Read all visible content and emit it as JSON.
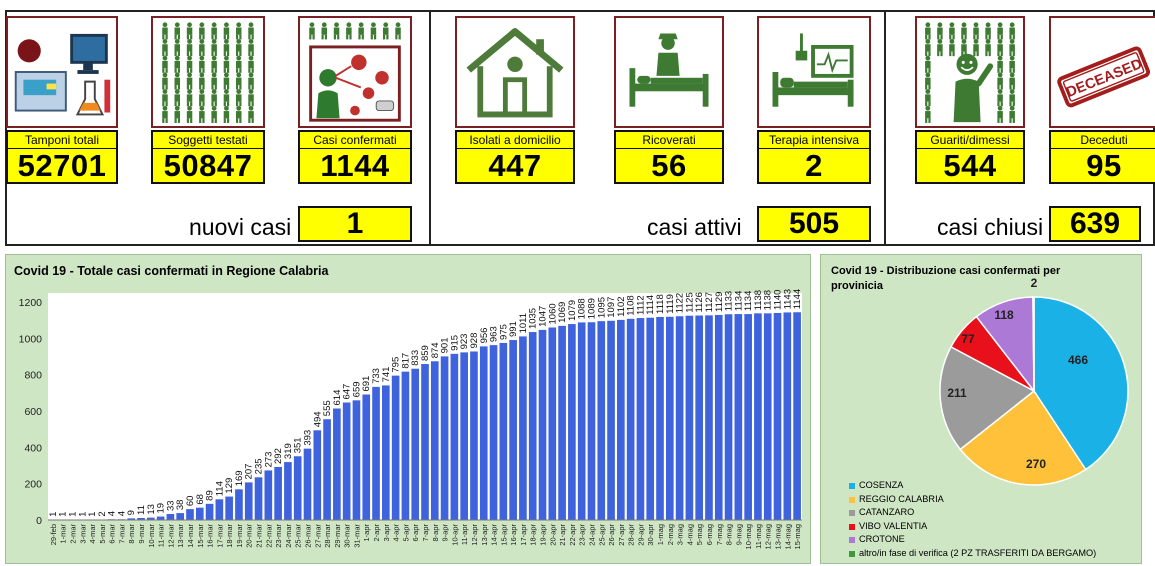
{
  "cards": [
    {
      "id": "tamponi",
      "label": "Tamponi totali",
      "value": "52701",
      "icon": "lab-testing-icon"
    },
    {
      "id": "soggetti",
      "label": "Soggetti testati",
      "value": "50847",
      "icon": "people-crowd-icon"
    },
    {
      "id": "confermati",
      "label": "Casi confermati",
      "value": "1144",
      "icon": "virus-infection-icon"
    },
    {
      "id": "isolati",
      "label": "Isolati a domicilio",
      "value": "447",
      "icon": "house-icon"
    },
    {
      "id": "ricoverati",
      "label": "Ricoverati",
      "value": "56",
      "icon": "hospital-bed-icon"
    },
    {
      "id": "terapia",
      "label": "Terapia intensiva",
      "value": "2",
      "icon": "icu-bed-icon"
    },
    {
      "id": "guariti",
      "label": "Guariti/dimessi",
      "value": "544",
      "icon": "recovered-person-icon"
    },
    {
      "id": "deceduti",
      "label": "Deceduti",
      "value": "95",
      "icon": "deceased-stamp-icon"
    }
  ],
  "stamp_text": "DECEASED",
  "summary": {
    "nuovi_label": "nuovi casi",
    "nuovi_value": "1",
    "attivi_label": "casi attivi",
    "attivi_value": "505",
    "chiusi_label": "casi chiusi",
    "chiusi_value": "639"
  },
  "colors": {
    "highlight": "#ffff00",
    "bar": "#3f63dd",
    "panel_bg": "#cfe6c5",
    "icon_green": "#3f7a33"
  },
  "chart_data": [
    {
      "type": "bar",
      "title": "Covid 19 - Totale casi confermati in Regione Calabria",
      "xlabel": "",
      "ylabel": "",
      "ylim": [
        0,
        1250
      ],
      "yticks": [
        0,
        200,
        400,
        600,
        800,
        1000,
        1200
      ],
      "grid": false,
      "categories": [
        "29-feb",
        "1-mar",
        "2-mar",
        "3-mar",
        "4-mar",
        "5-mar",
        "6-mar",
        "7-mar",
        "8-mar",
        "9-mar",
        "10-mar",
        "11-mar",
        "12-mar",
        "13-mar",
        "14-mar",
        "15-mar",
        "16-mar",
        "17-mar",
        "18-mar",
        "19-mar",
        "20-mar",
        "21-mar",
        "22-mar",
        "23-mar",
        "24-mar",
        "25-mar",
        "26-mar",
        "27-mar",
        "28-mar",
        "29-mar",
        "30-mar",
        "31-mar",
        "1-apr",
        "2-apr",
        "3-apr",
        "4-apr",
        "5-apr",
        "6-apr",
        "7-apr",
        "8-apr",
        "9-apr",
        "10-apr",
        "11-apr",
        "12-apr",
        "13-apr",
        "14-apr",
        "15-apr",
        "16-apr",
        "17-apr",
        "18-apr",
        "19-apr",
        "20-apr",
        "21-apr",
        "22-apr",
        "23-apr",
        "24-apr",
        "25-apr",
        "26-apr",
        "27-apr",
        "28-apr",
        "29-apr",
        "30-apr",
        "1-mag",
        "2-mag",
        "3-mag",
        "4-mag",
        "5-mag",
        "6-mag",
        "7-mag",
        "8-mag",
        "9-mag",
        "10-mag",
        "11-mag",
        "12-mag",
        "13-mag",
        "14-mag",
        "15-mag"
      ],
      "values": [
        1,
        1,
        1,
        1,
        1,
        2,
        4,
        4,
        9,
        11,
        13,
        19,
        33,
        38,
        60,
        68,
        89,
        114,
        129,
        169,
        207,
        235,
        273,
        292,
        319,
        351,
        393,
        494,
        555,
        614,
        647,
        659,
        691,
        733,
        741,
        795,
        817,
        833,
        859,
        874,
        901,
        915,
        923,
        928,
        956,
        963,
        975,
        991,
        1011,
        1035,
        1047,
        1060,
        1069,
        1079,
        1088,
        1089,
        1095,
        1097,
        1102,
        1108,
        1112,
        1114,
        1118,
        1119,
        1122,
        1125,
        1126,
        1127,
        1129,
        1133,
        1134,
        1134,
        1138,
        1138,
        1140,
        1143,
        1144
      ]
    },
    {
      "type": "pie",
      "title": "Covid 19 - Distribuzione casi confermati per provinicia",
      "labels": [
        "COSENZA",
        "REGGIO CALABRIA",
        "CATANZARO",
        "VIBO VALENTIA",
        "CROTONE",
        "altro/in fase di verifica (2 PZ TRASFERITI DA BERGAMO)"
      ],
      "values": [
        466,
        270,
        211,
        77,
        118,
        2
      ],
      "colors": [
        "#19b1e6",
        "#ffc03a",
        "#9b9b9b",
        "#e8111b",
        "#ad79d6",
        "#3f9a3f"
      ],
      "legend": "bottom-left"
    }
  ]
}
